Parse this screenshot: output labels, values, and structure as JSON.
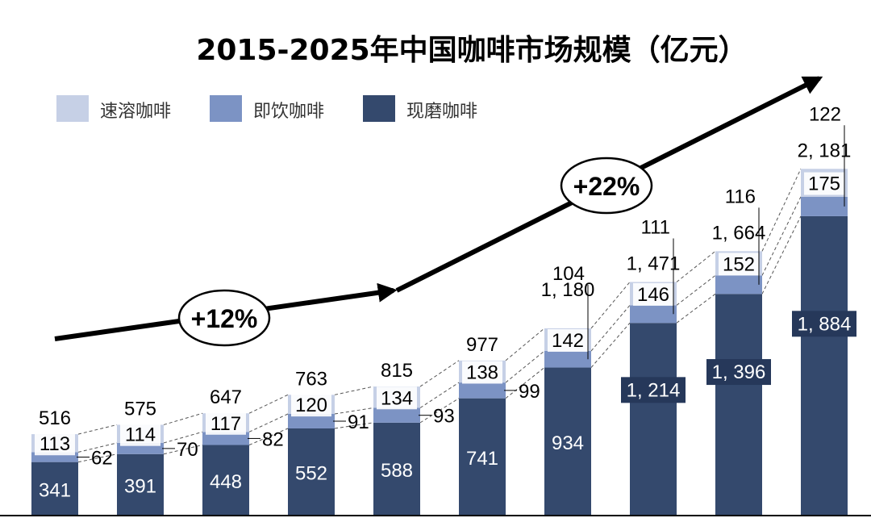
{
  "chart_data": {
    "type": "bar",
    "stacked": true,
    "title": "2015-2025年中国咖啡市场规模（亿元）",
    "xlabel": "",
    "ylabel": "",
    "ylim": [
      0,
      2400
    ],
    "categories": [
      "",
      "",
      "",
      "",
      "",
      "",
      "",
      "",
      "",
      ""
    ],
    "series": [
      {
        "name": "现磨咖啡",
        "color": "#34496d",
        "values": [
          341,
          391,
          448,
          552,
          588,
          741,
          934,
          1214,
          1396,
          1884
        ],
        "labels": [
          "341",
          "391",
          "448",
          "552",
          "588",
          "741",
          "934",
          "1, 214",
          "1, 396",
          "1, 884"
        ]
      },
      {
        "name": "即饮咖啡",
        "color": "#7c93c4",
        "values": [
          62,
          70,
          82,
          91,
          93,
          99,
          104,
          111,
          116,
          122
        ],
        "labels": [
          "62",
          "70",
          "82",
          "91",
          "93",
          "99",
          "104",
          "111",
          "116",
          "122"
        ]
      },
      {
        "name": "速溶咖啡",
        "color": "#c6d0e6",
        "values": [
          113,
          114,
          117,
          120,
          134,
          138,
          142,
          146,
          152,
          175
        ],
        "labels": [
          "113",
          "114",
          "117",
          "120",
          "134",
          "138",
          "142",
          "146",
          "152",
          "175"
        ]
      }
    ],
    "totals": [
      516,
      575,
      647,
      763,
      815,
      977,
      1180,
      1471,
      1664,
      2181
    ],
    "total_labels": [
      "516",
      "575",
      "647",
      "763",
      "815",
      "977",
      "1, 180",
      "1, 471",
      "1, 664",
      "2, 181"
    ],
    "annotations": [
      {
        "text": "+12%",
        "period": "first half trend"
      },
      {
        "text": "+22%",
        "period": "second half trend"
      }
    ],
    "legend": [
      "速溶咖啡",
      "即饮咖啡",
      "现磨咖啡"
    ]
  }
}
